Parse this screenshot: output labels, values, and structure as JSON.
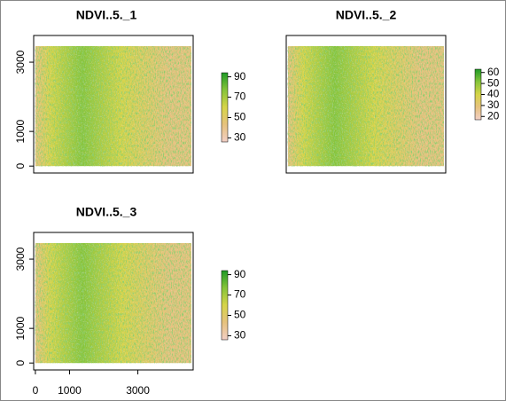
{
  "chart_data": [
    {
      "type": "raster",
      "title": "NDVI..5._1",
      "xlim": [
        -50,
        4620
      ],
      "ylim": [
        -200,
        3770
      ],
      "yticks": [
        0,
        1000,
        3000
      ],
      "colors": [
        "#f2cfc6",
        "#e6c27e",
        "#d6d448",
        "#86c43a",
        "#1e9a26"
      ],
      "legend": {
        "lim": [
          26,
          94
        ],
        "ticks": [
          90,
          70,
          50,
          30
        ]
      }
    },
    {
      "type": "raster",
      "title": "NDVI..5._2",
      "xlim": [
        -50,
        4620
      ],
      "ylim": [
        -200,
        3770
      ],
      "colors": [
        "#f2cfc6",
        "#e6c27e",
        "#d6d448",
        "#86c43a",
        "#1e9a26"
      ],
      "legend": {
        "lim": [
          17,
          63
        ],
        "ticks": [
          60,
          50,
          40,
          30,
          20
        ]
      }
    },
    {
      "type": "raster",
      "title": "NDVI..5._3",
      "xlim": [
        -50,
        4620
      ],
      "ylim": [
        -200,
        3770
      ],
      "xticks": [
        0,
        1000,
        3000
      ],
      "yticks": [
        0,
        1000,
        3000
      ],
      "colors": [
        "#f2cfc6",
        "#e6c27e",
        "#d6d448",
        "#86c43a",
        "#1e9a26"
      ],
      "legend": {
        "lim": [
          26,
          94
        ],
        "ticks": [
          90,
          70,
          50,
          30
        ]
      }
    }
  ]
}
